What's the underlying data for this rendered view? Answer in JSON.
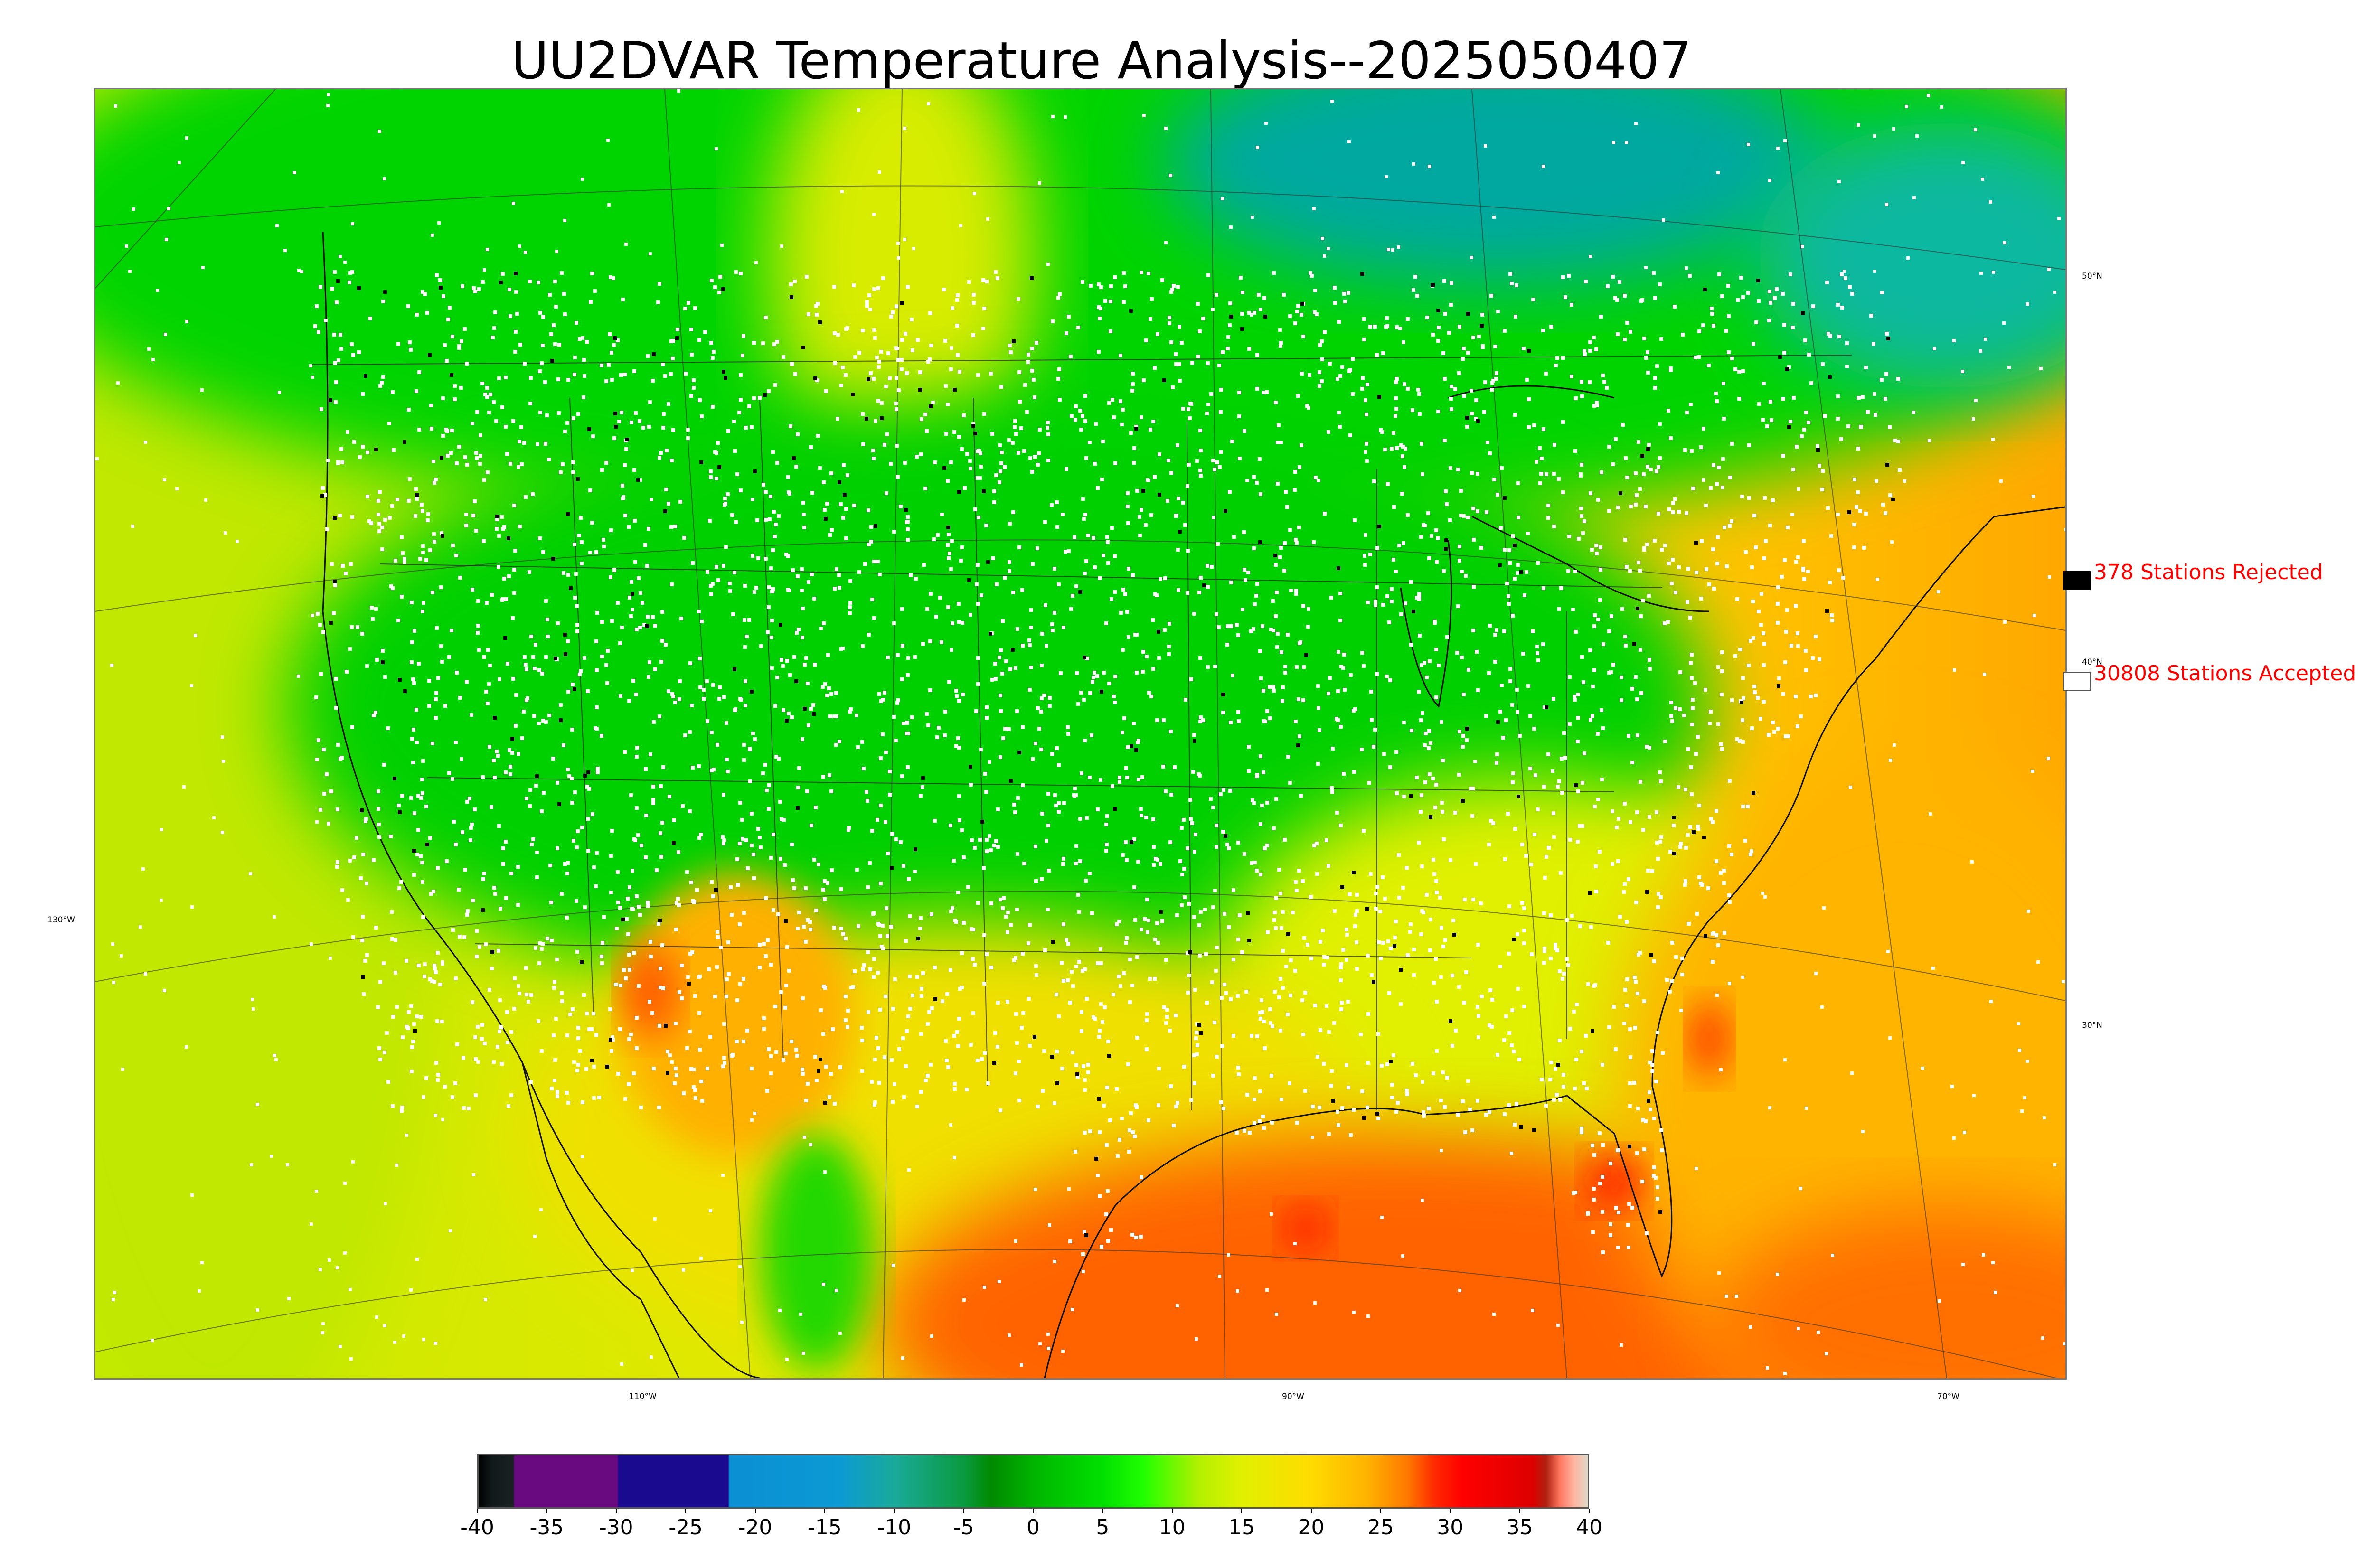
{
  "title": "UU2DVAR Temperature Analysis--2025050407",
  "graticule_labels": {
    "lat": [
      "50°N",
      "40°N",
      "30°N"
    ],
    "lon_bottom": [
      "110°W",
      "90°W",
      "70°W"
    ],
    "lon_left": "130°W"
  },
  "legend": {
    "rejected": {
      "text": "378 Stations Rejected",
      "swatch_color": "#000000"
    },
    "accepted": {
      "text": "30808 Stations Accepted",
      "swatch_color": "#ffffff"
    }
  },
  "colorbar": {
    "ticks": [
      "-40",
      "-35",
      "-30",
      "-25",
      "-20",
      "-15",
      "-10",
      "-5",
      "0",
      "5",
      "10",
      "15",
      "20",
      "25",
      "30",
      "35",
      "40"
    ],
    "range": [
      -40,
      40
    ],
    "gradient": [
      {
        "v": -40,
        "c": "#000000"
      },
      {
        "v": -39,
        "c": "#111a1a"
      },
      {
        "v": -37.5,
        "c": "#1a2222"
      },
      {
        "v": -37.4,
        "c": "#6a0a80"
      },
      {
        "v": -30,
        "c": "#6a0a80"
      },
      {
        "v": -29.9,
        "c": "#1a0a90"
      },
      {
        "v": -22,
        "c": "#1a0a90"
      },
      {
        "v": -21.9,
        "c": "#0b8fd3"
      },
      {
        "v": -14,
        "c": "#0b9ad3"
      },
      {
        "v": -10,
        "c": "#1aaa9a"
      },
      {
        "v": -5,
        "c": "#0a9a40"
      },
      {
        "v": -3,
        "c": "#008a00"
      },
      {
        "v": 0,
        "c": "#00b400"
      },
      {
        "v": 5,
        "c": "#00e000"
      },
      {
        "v": 8,
        "c": "#22ff00"
      },
      {
        "v": 12,
        "c": "#b4f000"
      },
      {
        "v": 15,
        "c": "#e0f000"
      },
      {
        "v": 20,
        "c": "#ffdc00"
      },
      {
        "v": 24,
        "c": "#ffb400"
      },
      {
        "v": 27,
        "c": "#ff7800"
      },
      {
        "v": 29,
        "c": "#ff2800"
      },
      {
        "v": 31,
        "c": "#ff0000"
      },
      {
        "v": 36,
        "c": "#dd0000"
      },
      {
        "v": 37,
        "c": "#b02010"
      },
      {
        "v": 38,
        "c": "#ff7860"
      },
      {
        "v": 39,
        "c": "#ffb4a0"
      },
      {
        "v": 40,
        "c": "#e0d8c8"
      }
    ]
  },
  "map_colors": {
    "ocean_pacific": "#c8ea00",
    "ocean_gulf": "#ff6a00",
    "ocean_atlantic": "#ffb800",
    "canada": "#00d000",
    "hudson": "#00a8a0",
    "land_green": "#00cc00",
    "land_yellow": "#d8f000",
    "desert_orange": "#ffa000",
    "station_accepted": "#ffffff",
    "station_rejected": "#000000"
  }
}
